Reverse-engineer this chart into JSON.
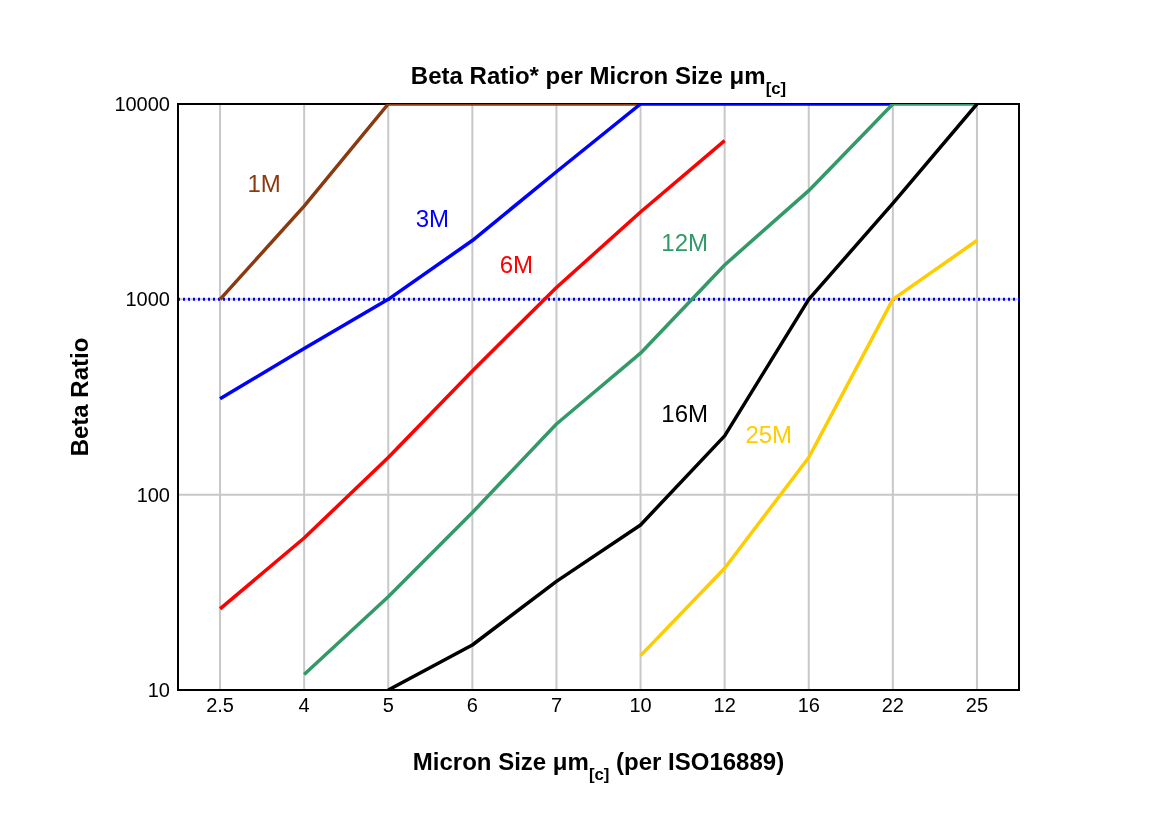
{
  "chart_data": {
    "type": "line",
    "title": "Beta Ratio* per Micron Size μm$_{[c]}$",
    "xlabel": "Micron Size μm$_{[c]}$ (per ISO16889)",
    "ylabel": "Beta Ratio",
    "categories": [
      "2.5",
      "4",
      "5",
      "6",
      "7",
      "10",
      "12",
      "16",
      "22",
      "25"
    ],
    "series": [
      {
        "name": "1M",
        "color": "#8b3a0f",
        "values": [
          1000,
          3000,
          10000,
          10000,
          10000,
          10000,
          null,
          null,
          null,
          null
        ]
      },
      {
        "name": "3M",
        "color": "#0000ff",
        "values": [
          310,
          560,
          1000,
          2000,
          4500,
          10000,
          10000,
          10000,
          10000,
          null
        ]
      },
      {
        "name": "6M",
        "color": "#ff0000",
        "values": [
          26,
          60,
          155,
          430,
          1150,
          2800,
          6500,
          null,
          null,
          null
        ]
      },
      {
        "name": "12M",
        "color": "#339966",
        "values": [
          null,
          12,
          30,
          81,
          230,
          530,
          1500,
          3600,
          10000,
          10000
        ]
      },
      {
        "name": "16M",
        "color": "#000000",
        "values": [
          null,
          null,
          10,
          17,
          36,
          70,
          200,
          1000,
          3100,
          10000
        ]
      },
      {
        "name": "25M",
        "color": "#ffcc00",
        "values": [
          null,
          null,
          null,
          null,
          null,
          15,
          42,
          155,
          1000,
          2000
        ]
      }
    ],
    "ylim": [
      10,
      10000
    ],
    "yticks": [
      10,
      100,
      1000,
      10000
    ],
    "log": "y",
    "grid": true,
    "marker": "none",
    "line_style": "solid",
    "ref_lines": [
      {
        "axis": "y",
        "value": 1000,
        "color": "#0000ff",
        "line_style": "dotted"
      }
    ]
  }
}
